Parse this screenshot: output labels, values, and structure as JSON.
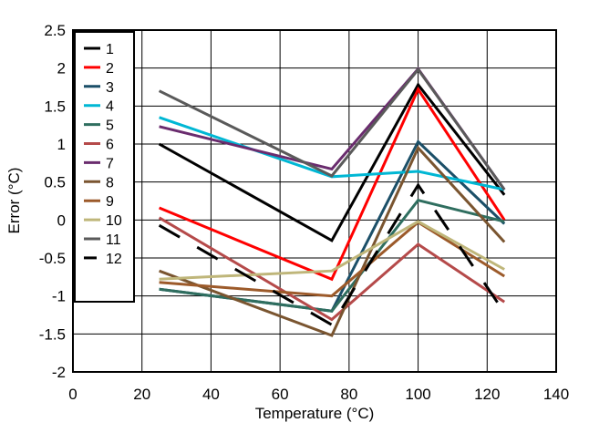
{
  "chart_data": {
    "type": "line",
    "xlabel": "Temperature (°C)",
    "ylabel": "Error (°C)",
    "xlim": [
      0,
      140
    ],
    "ylim": [
      -2,
      2.5
    ],
    "xticks": [
      0,
      20,
      40,
      60,
      80,
      100,
      120,
      140
    ],
    "yticks": [
      -2,
      -1.5,
      -1,
      -0.5,
      0,
      0.5,
      1,
      1.5,
      2,
      2.5
    ],
    "ytick_labels": [
      "-2",
      "-1.5",
      "-1",
      "-0.5",
      "0",
      "0.5",
      "1",
      "1.5",
      "2",
      "2.5"
    ],
    "grid": true,
    "legend_position": "top-left",
    "x": [
      25,
      75,
      100,
      125
    ],
    "series": [
      {
        "name": "1",
        "color": "#000000",
        "dash": "solid",
        "values": [
          1.0,
          -0.27,
          1.78,
          0.33
        ]
      },
      {
        "name": "2",
        "color": "#ff0000",
        "dash": "solid",
        "values": [
          0.16,
          -0.78,
          1.72,
          0.0
        ]
      },
      {
        "name": "3",
        "color": "#1b4f68",
        "dash": "solid",
        "values": [
          -0.91,
          -1.2,
          1.03,
          -0.05
        ]
      },
      {
        "name": "4",
        "color": "#00b7d4",
        "dash": "solid",
        "values": [
          1.35,
          0.57,
          0.64,
          0.4
        ]
      },
      {
        "name": "5",
        "color": "#2f6e5f",
        "dash": "solid",
        "values": [
          -0.91,
          -1.2,
          0.26,
          -0.02
        ]
      },
      {
        "name": "6",
        "color": "#b54a4a",
        "dash": "solid",
        "values": [
          0.03,
          -1.31,
          -0.32,
          -1.08
        ]
      },
      {
        "name": "7",
        "color": "#6a2c6e",
        "dash": "solid",
        "values": [
          1.23,
          0.67,
          1.99,
          0.4
        ]
      },
      {
        "name": "8",
        "color": "#7a5530",
        "dash": "solid",
        "values": [
          -0.67,
          -1.52,
          0.95,
          -0.29
        ]
      },
      {
        "name": "9",
        "color": "#9c5a2a",
        "dash": "solid",
        "values": [
          -0.82,
          -1.0,
          -0.03,
          -0.74
        ]
      },
      {
        "name": "10",
        "color": "#bfb67a",
        "dash": "solid",
        "values": [
          -0.78,
          -0.67,
          -0.02,
          -0.65
        ]
      },
      {
        "name": "11",
        "color": "#5a5a5a",
        "dash": "solid",
        "values": [
          1.7,
          0.58,
          1.98,
          0.4
        ]
      },
      {
        "name": "12",
        "color": "#000000",
        "dash": "dashed",
        "values": [
          -0.07,
          -1.38,
          0.46,
          -1.22
        ]
      }
    ]
  }
}
